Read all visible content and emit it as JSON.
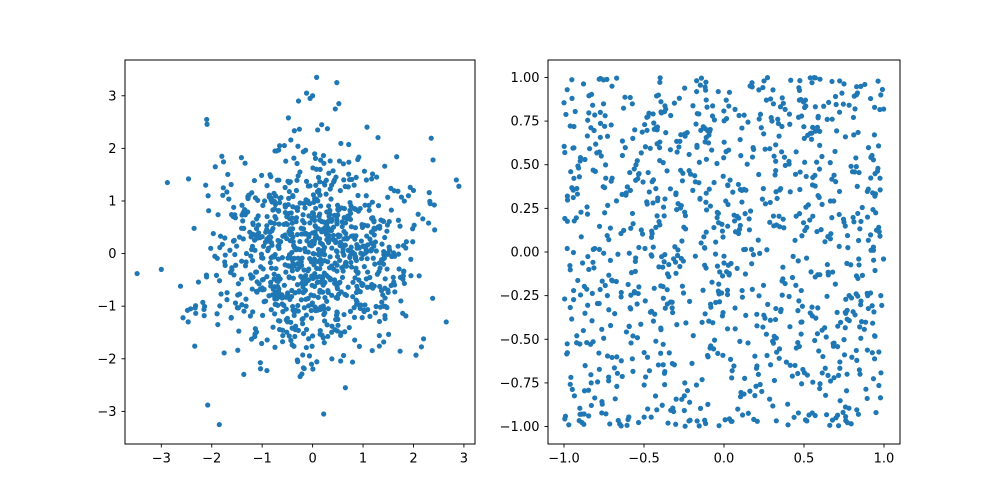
{
  "chart_data": [
    {
      "type": "scatter",
      "title": "",
      "xlabel": "",
      "ylabel": "",
      "xlim": [
        -3.72,
        3.22
      ],
      "ylim": [
        -3.62,
        3.68
      ],
      "xticks": [
        -3,
        -2,
        -1,
        0,
        1,
        2,
        3
      ],
      "yticks": [
        -3,
        -2,
        -1,
        0,
        1,
        2,
        3
      ],
      "xtick_labels": [
        "−3",
        "−2",
        "−1",
        "0",
        "1",
        "2",
        "3"
      ],
      "ytick_labels": [
        "−3",
        "−2",
        "−1",
        "0",
        "1",
        "2",
        "3"
      ],
      "grid": false,
      "legend": "none",
      "marker_color": "#1f77b4",
      "distribution": "normal, mean 0, std 1",
      "n_points": 1000,
      "series": [
        {
          "x": [
            -3.48,
            -3.0,
            -2.88,
            -2.62,
            -2.57,
            -2.46,
            -2.42,
            -2.35,
            -2.15,
            -2.12,
            -2.1,
            -2.02,
            -1.93,
            -1.88,
            -1.8,
            -1.77,
            -2.08,
            -1.85,
            2.85,
            2.9,
            2.65,
            2.42,
            2.38,
            2.3,
            2.2,
            2.05,
            2.0,
            1.95,
            1.9,
            1.75,
            -0.28,
            -0.12,
            -0.05,
            0.0,
            0.45,
            0.48,
            0.52,
            0.18,
            -0.48,
            0.08,
            0.1,
            0.65,
            0.22
          ],
          "y": [
            -0.38,
            -0.3,
            1.35,
            -0.62,
            -1.22,
            1.42,
            -1.05,
            0.48,
            -1.18,
            1.3,
            2.55,
            0.1,
            1.65,
            -1.35,
            1.85,
            1.25,
            -2.88,
            -3.25,
            1.4,
            1.28,
            -1.3,
            0.45,
            -0.85,
            0.58,
            -1.62,
            -1.93,
            1.2,
            -0.42,
            1.1,
            -0.9,
            2.9,
            3.05,
            2.95,
            3.0,
            2.75,
            3.25,
            2.85,
            2.45,
            2.58,
            3.35,
            2.35,
            -2.55,
            -3.05
          ]
        }
      ]
    },
    {
      "type": "scatter",
      "title": "",
      "xlabel": "",
      "ylabel": "",
      "xlim": [
        -1.1,
        1.1
      ],
      "ylim": [
        -1.1,
        1.1
      ],
      "xticks": [
        -1.0,
        -0.5,
        0.0,
        0.5,
        1.0
      ],
      "yticks": [
        -1.0,
        -0.75,
        -0.5,
        -0.25,
        0.0,
        0.25,
        0.5,
        0.75,
        1.0
      ],
      "xtick_labels": [
        "−1.0",
        "−0.5",
        "0.0",
        "0.5",
        "1.0"
      ],
      "ytick_labels": [
        "−1.00",
        "−0.75",
        "−0.50",
        "−0.25",
        "0.00",
        "0.25",
        "0.50",
        "0.75",
        "1.00"
      ],
      "grid": false,
      "legend": "none",
      "marker_color": "#1f77b4",
      "distribution": "uniform on [-1, 1] x [-1, 1]",
      "n_points": 1000,
      "series": [
        {
          "x": [
            -0.98,
            -0.95,
            -0.78,
            -0.7,
            0.25,
            0.55,
            0.6,
            0.88,
            0.98,
            -0.97,
            -0.9,
            -0.6,
            -0.35,
            0.05,
            0.4,
            0.7,
            0.95,
            -0.98,
            -0.92,
            -0.55,
            -0.1,
            0.3,
            0.85,
            0.98
          ],
          "y": [
            0.93,
            0.88,
            0.99,
            0.95,
            0.98,
            0.97,
            0.99,
            0.96,
            0.9,
            -0.99,
            -0.93,
            -0.96,
            -0.98,
            -0.97,
            -0.99,
            -0.95,
            -0.92,
            0.02,
            -0.48,
            0.5,
            -0.6,
            0.75,
            -0.7,
            -0.25
          ]
        }
      ]
    }
  ]
}
